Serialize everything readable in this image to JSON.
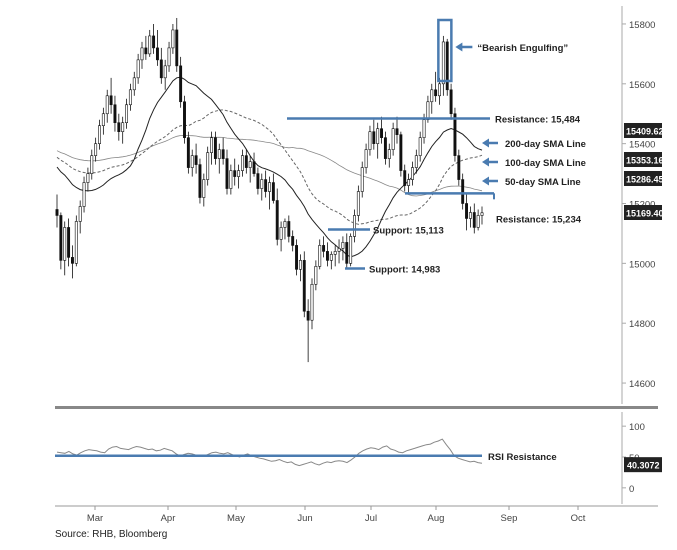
{
  "chart_data": {
    "type": "candlestick",
    "x_axis": {
      "months": [
        "Mar",
        "Apr",
        "May",
        "Jun",
        "Jul",
        "Aug",
        "Sep",
        "Oct"
      ]
    },
    "price_panel": {
      "y_axis": {
        "ticks": [
          14600,
          14800,
          15000,
          15200,
          15400,
          15600,
          15800
        ],
        "tick_labels": [
          "14600",
          "14800",
          "15000",
          "15200",
          "15400",
          "15600",
          "15800"
        ],
        "range": [
          14530,
          15860
        ]
      },
      "candles": [
        [
          15180,
          15230,
          15120,
          15160
        ],
        [
          15160,
          15170,
          14980,
          15010
        ],
        [
          15010,
          15140,
          14960,
          15120
        ],
        [
          15120,
          15150,
          14990,
          15020
        ],
        [
          15020,
          15060,
          14950,
          15000
        ],
        [
          15000,
          15160,
          14990,
          15140
        ],
        [
          15140,
          15210,
          15100,
          15190
        ],
        [
          15190,
          15290,
          15170,
          15270
        ],
        [
          15270,
          15320,
          15240,
          15300
        ],
        [
          15300,
          15380,
          15280,
          15360
        ],
        [
          15360,
          15420,
          15340,
          15400
        ],
        [
          15400,
          15480,
          15380,
          15460
        ],
        [
          15460,
          15520,
          15430,
          15500
        ],
        [
          15500,
          15580,
          15470,
          15560
        ],
        [
          15560,
          15620,
          15500,
          15530
        ],
        [
          15530,
          15560,
          15440,
          15470
        ],
        [
          15470,
          15500,
          15410,
          15440
        ],
        [
          15440,
          15490,
          15400,
          15470
        ],
        [
          15470,
          15550,
          15450,
          15530
        ],
        [
          15530,
          15600,
          15510,
          15580
        ],
        [
          15580,
          15640,
          15560,
          15620
        ],
        [
          15620,
          15700,
          15600,
          15680
        ],
        [
          15680,
          15740,
          15650,
          15720
        ],
        [
          15720,
          15760,
          15680,
          15700
        ],
        [
          15700,
          15780,
          15690,
          15760
        ],
        [
          15760,
          15800,
          15700,
          15720
        ],
        [
          15720,
          15780,
          15660,
          15680
        ],
        [
          15680,
          15720,
          15600,
          15620
        ],
        [
          15620,
          15680,
          15580,
          15660
        ],
        [
          15660,
          15740,
          15640,
          15720
        ],
        [
          15720,
          15800,
          15700,
          15780
        ],
        [
          15780,
          15820,
          15640,
          15660
        ],
        [
          15660,
          15690,
          15520,
          15540
        ],
        [
          15540,
          15560,
          15400,
          15420
        ],
        [
          15420,
          15440,
          15300,
          15320
        ],
        [
          15320,
          15380,
          15290,
          15360
        ],
        [
          15360,
          15400,
          15300,
          15330
        ],
        [
          15330,
          15350,
          15200,
          15220
        ],
        [
          15220,
          15300,
          15190,
          15280
        ],
        [
          15280,
          15390,
          15260,
          15370
        ],
        [
          15370,
          15440,
          15330,
          15420
        ],
        [
          15420,
          15440,
          15330,
          15350
        ],
        [
          15350,
          15400,
          15300,
          15380
        ],
        [
          15380,
          15420,
          15330,
          15350
        ],
        [
          15350,
          15380,
          15230,
          15250
        ],
        [
          15250,
          15330,
          15230,
          15310
        ],
        [
          15310,
          15350,
          15260,
          15290
        ],
        [
          15290,
          15330,
          15250,
          15310
        ],
        [
          15310,
          15380,
          15290,
          15360
        ],
        [
          15360,
          15380,
          15300,
          15320
        ],
        [
          15320,
          15360,
          15270,
          15340
        ],
        [
          15340,
          15370,
          15290,
          15300
        ],
        [
          15300,
          15320,
          15230,
          15250
        ],
        [
          15250,
          15300,
          15210,
          15280
        ],
        [
          15280,
          15310,
          15220,
          15240
        ],
        [
          15240,
          15290,
          15180,
          15270
        ],
        [
          15270,
          15300,
          15200,
          15210
        ],
        [
          15210,
          15250,
          15060,
          15080
        ],
        [
          15080,
          15140,
          15040,
          15120
        ],
        [
          15120,
          15150,
          15080,
          15140
        ],
        [
          15140,
          15160,
          15070,
          15090
        ],
        [
          15090,
          15110,
          15040,
          15060
        ],
        [
          15060,
          15080,
          14960,
          14980
        ],
        [
          14980,
          15030,
          14940,
          15010
        ],
        [
          15010,
          15040,
          14820,
          14840
        ],
        [
          14840,
          14880,
          14670,
          14810
        ],
        [
          14810,
          14950,
          14780,
          14930
        ],
        [
          14930,
          15010,
          14910,
          14990
        ],
        [
          14990,
          15080,
          14980,
          15060
        ],
        [
          15060,
          15090,
          15020,
          15040
        ],
        [
          15040,
          15070,
          14990,
          15010
        ],
        [
          15010,
          15040,
          14980,
          15030
        ],
        [
          15030,
          15060,
          14990,
          15040
        ],
        [
          15040,
          15080,
          15000,
          15050
        ],
        [
          15050,
          15090,
          15010,
          15070
        ],
        [
          15070,
          15100,
          14980,
          15000
        ],
        [
          15000,
          15100,
          14990,
          15090
        ],
        [
          15090,
          15180,
          15070,
          15160
        ],
        [
          15160,
          15260,
          15140,
          15240
        ],
        [
          15240,
          15340,
          15220,
          15320
        ],
        [
          15320,
          15400,
          15300,
          15380
        ],
        [
          15380,
          15460,
          15360,
          15440
        ],
        [
          15440,
          15480,
          15380,
          15400
        ],
        [
          15400,
          15470,
          15350,
          15450
        ],
        [
          15450,
          15490,
          15400,
          15420
        ],
        [
          15420,
          15440,
          15330,
          15350
        ],
        [
          15350,
          15400,
          15320,
          15380
        ],
        [
          15380,
          15470,
          15360,
          15450
        ],
        [
          15450,
          15490,
          15400,
          15430
        ],
        [
          15430,
          15440,
          15290,
          15310
        ],
        [
          15310,
          15330,
          15240,
          15260
        ],
        [
          15260,
          15300,
          15230,
          15280
        ],
        [
          15280,
          15340,
          15260,
          15320
        ],
        [
          15320,
          15380,
          15300,
          15360
        ],
        [
          15360,
          15440,
          15340,
          15420
        ],
        [
          15420,
          15500,
          15400,
          15480
        ],
        [
          15480,
          15560,
          15470,
          15540
        ],
        [
          15540,
          15600,
          15500,
          15580
        ],
        [
          15580,
          15640,
          15540,
          15560
        ],
        [
          15560,
          15620,
          15530,
          15600
        ],
        [
          15600,
          15760,
          15560,
          15740
        ],
        [
          15740,
          15750,
          15560,
          15580
        ],
        [
          15580,
          15600,
          15480,
          15500
        ],
        [
          15500,
          15520,
          15340,
          15360
        ],
        [
          15360,
          15380,
          15260,
          15280
        ],
        [
          15280,
          15300,
          15180,
          15200
        ],
        [
          15200,
          15230,
          15110,
          15150
        ],
        [
          15150,
          15190,
          15120,
          15170
        ],
        [
          15170,
          15200,
          15100,
          15120
        ],
        [
          15120,
          15180,
          15110,
          15160
        ],
        [
          15160,
          15190,
          15130,
          15169
        ]
      ],
      "annotations": [
        {
          "label": "“Bearish Engulfing”",
          "target_price": 15680
        },
        {
          "label": "Resistance: 15,484",
          "price": 15484
        },
        {
          "label": "200-day SMA Line",
          "price": 15409.62
        },
        {
          "label": "100-day SMA Line",
          "price": 15353.16
        },
        {
          "label": "50-day SMA Line",
          "price": 15286.45
        },
        {
          "label": "Resistance: 15,234",
          "price": 15234
        },
        {
          "label": "Support: 15,113",
          "price": 15113
        },
        {
          "label": "Support: 14,983",
          "price": 14983
        }
      ],
      "last_value_labels": [
        "15409.62",
        "15353.16",
        "15286.45",
        "15169.40"
      ]
    },
    "rsi_panel": {
      "y_axis": {
        "ticks": [
          0,
          50,
          100
        ],
        "tick_labels": [
          "0",
          "50",
          "100"
        ],
        "range": [
          -10,
          110
        ]
      },
      "resistance_label": "RSI Resistance",
      "resistance_level": 52,
      "last_value_label": "40.3072",
      "values": [
        58,
        57,
        56,
        59,
        55,
        53,
        57,
        60,
        62,
        61,
        60,
        58,
        57,
        63,
        66,
        67,
        64,
        63,
        62,
        65,
        67,
        66,
        64,
        62,
        63,
        60,
        61,
        64,
        62,
        60,
        55,
        52,
        54,
        56,
        55,
        53,
        51,
        52,
        54,
        57,
        58,
        56,
        55,
        57,
        54,
        52,
        50,
        53,
        55,
        52,
        50,
        48,
        47,
        45,
        43,
        44,
        46,
        43,
        41,
        42,
        38,
        36,
        38,
        40,
        42,
        39,
        37,
        40,
        42,
        41,
        43,
        44,
        43,
        41,
        45,
        50,
        56,
        60,
        63,
        65,
        64,
        62,
        66,
        68,
        63,
        61,
        58,
        57,
        60,
        62,
        64,
        66,
        68,
        70,
        71,
        74,
        76,
        79,
        70,
        62,
        52,
        48,
        46,
        44,
        42,
        43,
        41,
        40
      ]
    }
  },
  "footer": {
    "source": "Source: RHB, Bloomberg"
  }
}
